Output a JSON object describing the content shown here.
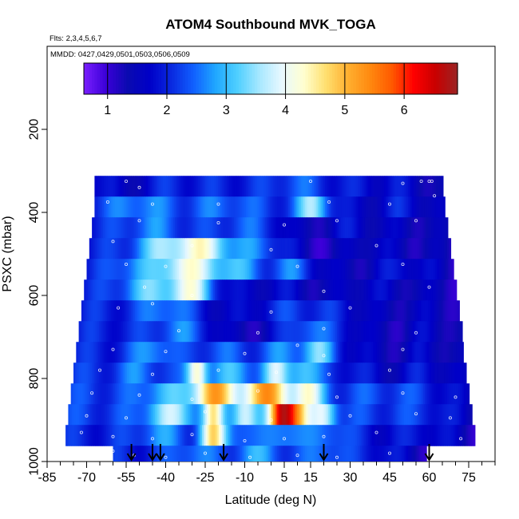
{
  "chart_data": {
    "type": "heatmap",
    "title": "ATOM4 Southbound MVK_TOGA",
    "flights_note": "Flts: 2,3,4,5,6,7",
    "dates_note": "MMDD: 0427,0429,0501,0503,0506,0509",
    "xlabel": "Latitude (deg N)",
    "ylabel": "PSXC (mbar)",
    "xlim": [
      -85,
      85
    ],
    "ylim": [
      1000,
      0
    ],
    "x_ticks": [
      -85,
      -70,
      -55,
      -40,
      -25,
      -10,
      5,
      15,
      30,
      45,
      60,
      75
    ],
    "y_ticks": [
      200,
      400,
      600,
      800,
      1000
    ],
    "colorbar": {
      "ticks": [
        1,
        2,
        3,
        4,
        5,
        6
      ],
      "range": [
        0.6,
        6.9
      ],
      "colors": [
        "#7a1fff",
        "#3b00d8",
        "#0a0ab0",
        "#0000c8",
        "#0a2ae0",
        "#1060ff",
        "#20a8ff",
        "#50d0ff",
        "#a8e8ff",
        "#e8f8ff",
        "#ffffd0",
        "#ffe070",
        "#ffb030",
        "#ff8a10",
        "#ff5a00",
        "#ff0000",
        "#c80000",
        "#9b2424"
      ]
    },
    "altitude_bins_mbar": [
      300,
      400,
      500,
      600,
      700,
      800,
      900,
      1000
    ],
    "vertical_profiles": [
      {
        "lat_range": [
          -67,
          65
        ],
        "pressure_range": [
          312,
          362
        ],
        "base_value": 2.0,
        "hotspots": [
          {
            "lat": -55,
            "value": 1.4,
            "width": 6
          },
          {
            "lat": 10,
            "value": 2.4,
            "width": 10
          },
          {
            "lat": 40,
            "value": 1.8,
            "width": 15
          }
        ]
      },
      {
        "lat_range": [
          -67,
          66
        ],
        "pressure_range": [
          362,
          412
        ],
        "base_value": 2.1,
        "hotspots": [
          {
            "lat": -50,
            "value": 2.7,
            "width": 12
          },
          {
            "lat": -18,
            "value": 2.5,
            "width": 14
          },
          {
            "lat": 16,
            "value": 3.6,
            "width": 6
          },
          {
            "lat": 35,
            "value": 1.6,
            "width": 12
          }
        ]
      },
      {
        "lat_range": [
          -68,
          67
        ],
        "pressure_range": [
          412,
          462
        ],
        "base_value": 2.0,
        "hotspots": [
          {
            "lat": -45,
            "value": 2.6,
            "width": 12
          },
          {
            "lat": -10,
            "value": 2.4,
            "width": 12
          },
          {
            "lat": 14,
            "value": 1.3,
            "width": 10
          },
          {
            "lat": 45,
            "value": 1.5,
            "width": 14
          }
        ]
      },
      {
        "lat_range": [
          -69,
          68
        ],
        "pressure_range": [
          462,
          512
        ],
        "base_value": 2.0,
        "hotspots": [
          {
            "lat": -40,
            "value": 3.4,
            "width": 12
          },
          {
            "lat": -25,
            "value": 3.8,
            "width": 10
          },
          {
            "lat": -5,
            "value": 2.6,
            "width": 10
          },
          {
            "lat": 20,
            "value": 1.2,
            "width": 14
          },
          {
            "lat": 50,
            "value": 1.5,
            "width": 12
          }
        ]
      },
      {
        "lat_range": [
          -70,
          69
        ],
        "pressure_range": [
          512,
          562
        ],
        "base_value": 2.0,
        "hotspots": [
          {
            "lat": -50,
            "value": 2.8,
            "width": 10
          },
          {
            "lat": -32,
            "value": 4.1,
            "width": 10
          },
          {
            "lat": -15,
            "value": 3.0,
            "width": 10
          },
          {
            "lat": 8,
            "value": 2.6,
            "width": 8
          },
          {
            "lat": 30,
            "value": 1.4,
            "width": 15
          }
        ]
      },
      {
        "lat_range": [
          -71,
          70
        ],
        "pressure_range": [
          562,
          612
        ],
        "base_value": 2.0,
        "hotspots": [
          {
            "lat": -45,
            "value": 3.2,
            "width": 12
          },
          {
            "lat": -30,
            "value": 3.8,
            "width": 8
          },
          {
            "lat": -10,
            "value": 1.6,
            "width": 12
          },
          {
            "lat": 20,
            "value": 1.4,
            "width": 14
          },
          {
            "lat": 50,
            "value": 1.5,
            "width": 12
          }
        ]
      },
      {
        "lat_range": [
          -72,
          71
        ],
        "pressure_range": [
          612,
          662
        ],
        "base_value": 2.0,
        "hotspots": [
          {
            "lat": -40,
            "value": 2.7,
            "width": 10
          },
          {
            "lat": -15,
            "value": 1.6,
            "width": 12
          },
          {
            "lat": 10,
            "value": 2.2,
            "width": 12
          },
          {
            "lat": 45,
            "value": 1.4,
            "width": 14
          }
        ]
      },
      {
        "lat_range": [
          -73,
          72
        ],
        "pressure_range": [
          662,
          712
        ],
        "base_value": 2.0,
        "hotspots": [
          {
            "lat": -35,
            "value": 2.6,
            "width": 10
          },
          {
            "lat": -10,
            "value": 1.3,
            "width": 12
          },
          {
            "lat": 15,
            "value": 2.6,
            "width": 8
          },
          {
            "lat": 45,
            "value": 1.3,
            "width": 12
          }
        ]
      },
      {
        "lat_range": [
          -74,
          73
        ],
        "pressure_range": [
          712,
          762
        ],
        "base_value": 2.0,
        "hotspots": [
          {
            "lat": -45,
            "value": 2.8,
            "width": 8
          },
          {
            "lat": -20,
            "value": 2.4,
            "width": 10
          },
          {
            "lat": 5,
            "value": 2.6,
            "width": 10
          },
          {
            "lat": 18,
            "value": 3.2,
            "width": 6
          },
          {
            "lat": 45,
            "value": 1.4,
            "width": 14
          }
        ]
      },
      {
        "lat_range": [
          -75,
          74
        ],
        "pressure_range": [
          762,
          812
        ],
        "base_value": 2.1,
        "hotspots": [
          {
            "lat": -50,
            "value": 2.6,
            "width": 8
          },
          {
            "lat": -28,
            "value": 4.4,
            "width": 4
          },
          {
            "lat": -14,
            "value": 3.0,
            "width": 8
          },
          {
            "lat": 2,
            "value": 3.6,
            "width": 5
          },
          {
            "lat": 12,
            "value": 3.2,
            "width": 6
          },
          {
            "lat": 45,
            "value": 1.6,
            "width": 12
          }
        ]
      },
      {
        "lat_range": [
          -76,
          75
        ],
        "pressure_range": [
          812,
          862
        ],
        "base_value": 2.2,
        "hotspots": [
          {
            "lat": -40,
            "value": 3.0,
            "width": 10
          },
          {
            "lat": -22,
            "value": 5.1,
            "width": 8
          },
          {
            "lat": -2,
            "value": 5.2,
            "width": 10
          },
          {
            "lat": 14,
            "value": 4.0,
            "width": 6
          },
          {
            "lat": 40,
            "value": 2.3,
            "width": 12
          }
        ]
      },
      {
        "lat_range": [
          -77,
          76
        ],
        "pressure_range": [
          862,
          912
        ],
        "base_value": 2.2,
        "hotspots": [
          {
            "lat": -38,
            "value": 3.6,
            "width": 10
          },
          {
            "lat": -22,
            "value": 4.3,
            "width": 4
          },
          {
            "lat": -10,
            "value": 4.0,
            "width": 5
          },
          {
            "lat": 4,
            "value": 6.2,
            "width": 5
          },
          {
            "lat": 10,
            "value": 4.6,
            "width": 5
          },
          {
            "lat": 20,
            "value": 3.8,
            "width": 5
          },
          {
            "lat": 42,
            "value": 2.2,
            "width": 12
          }
        ]
      },
      {
        "lat_range": [
          -78,
          77
        ],
        "pressure_range": [
          912,
          962
        ],
        "base_value": 2.0,
        "hotspots": [
          {
            "lat": -42,
            "value": 2.7,
            "width": 10
          },
          {
            "lat": -22,
            "value": 4.5,
            "width": 5
          },
          {
            "lat": -12,
            "value": 2.6,
            "width": 6
          },
          {
            "lat": 5,
            "value": 2.8,
            "width": 8
          },
          {
            "lat": 22,
            "value": 2.6,
            "width": 8
          },
          {
            "lat": 45,
            "value": 1.8,
            "width": 12
          }
        ]
      },
      {
        "lat_range": [
          -60,
          59
        ],
        "pressure_range": [
          962,
          1000
        ],
        "base_value": 2.0,
        "hotspots": [
          {
            "lat": -30,
            "value": 2.6,
            "width": 10
          },
          {
            "lat": -5,
            "value": 2.8,
            "width": 10
          },
          {
            "lat": 20,
            "value": 2.6,
            "width": 8
          }
        ]
      }
    ],
    "sample_points": [
      [
        -55,
        325
      ],
      [
        -50,
        340
      ],
      [
        15,
        325
      ],
      [
        50,
        330
      ],
      [
        57,
        325
      ],
      [
        60,
        325
      ],
      [
        61,
        325
      ],
      [
        -62,
        375
      ],
      [
        -45,
        380
      ],
      [
        -20,
        380
      ],
      [
        22,
        375
      ],
      [
        45,
        380
      ],
      [
        62,
        360
      ],
      [
        -50,
        420
      ],
      [
        -20,
        425
      ],
      [
        5,
        430
      ],
      [
        25,
        420
      ],
      [
        55,
        420
      ],
      [
        -60,
        470
      ],
      [
        -30,
        480
      ],
      [
        0,
        490
      ],
      [
        40,
        480
      ],
      [
        -55,
        525
      ],
      [
        -40,
        530
      ],
      [
        10,
        530
      ],
      [
        50,
        525
      ],
      [
        -48,
        580
      ],
      [
        -30,
        600
      ],
      [
        20,
        590
      ],
      [
        60,
        580
      ],
      [
        -58,
        630
      ],
      [
        -45,
        620
      ],
      [
        0,
        640
      ],
      [
        30,
        630
      ],
      [
        -35,
        685
      ],
      [
        -5,
        690
      ],
      [
        20,
        680
      ],
      [
        55,
        690
      ],
      [
        -60,
        730
      ],
      [
        -40,
        735
      ],
      [
        -10,
        740
      ],
      [
        10,
        720
      ],
      [
        20,
        745
      ],
      [
        50,
        730
      ],
      [
        -65,
        780
      ],
      [
        -45,
        790
      ],
      [
        -20,
        780
      ],
      [
        2,
        785
      ],
      [
        22,
        790
      ],
      [
        45,
        780
      ],
      [
        -68,
        835
      ],
      [
        -50,
        840
      ],
      [
        -30,
        850
      ],
      [
        -5,
        830
      ],
      [
        25,
        845
      ],
      [
        50,
        835
      ],
      [
        70,
        845
      ],
      [
        -70,
        890
      ],
      [
        -55,
        895
      ],
      [
        -25,
        880
      ],
      [
        0,
        900
      ],
      [
        30,
        890
      ],
      [
        55,
        885
      ],
      [
        68,
        895
      ],
      [
        -72,
        930
      ],
      [
        -60,
        940
      ],
      [
        -45,
        945
      ],
      [
        -30,
        935
      ],
      [
        -10,
        950
      ],
      [
        5,
        945
      ],
      [
        20,
        940
      ],
      [
        40,
        930
      ],
      [
        72,
        945
      ],
      [
        -60,
        975
      ],
      [
        -52,
        985
      ],
      [
        -40,
        990
      ],
      [
        -25,
        980
      ],
      [
        -8,
        990
      ],
      [
        10,
        985
      ],
      [
        25,
        990
      ],
      [
        45,
        980
      ]
    ],
    "flight_markers_lat": [
      -53,
      -45,
      -42,
      -18,
      20,
      60
    ]
  }
}
